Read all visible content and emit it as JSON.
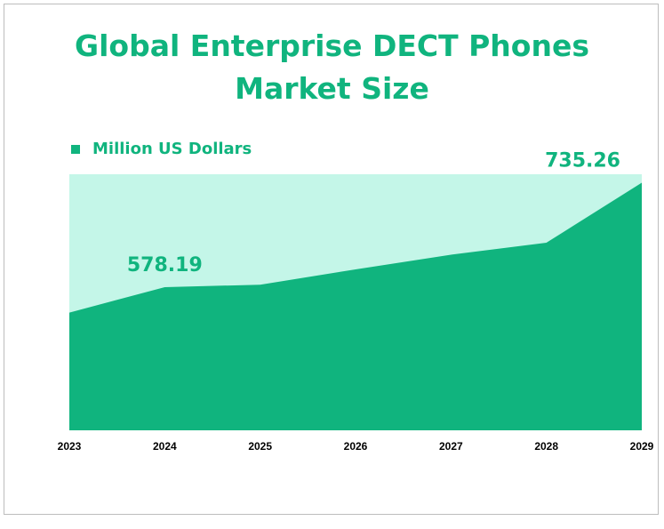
{
  "colors": {
    "accent": "#10b47e",
    "area_fill": "#10b47e",
    "plot_background": "#c4f6e8"
  },
  "chart_data": {
    "type": "area",
    "title": "Global Enterprise DECT Phones Market Size",
    "x": [
      "2023",
      "2024",
      "2025",
      "2026",
      "2027",
      "2028",
      "2029"
    ],
    "series": [
      {
        "name": "Million US Dollars",
        "values": [
          540,
          578.19,
          582,
          605,
          627,
          645,
          735.26
        ]
      }
    ],
    "data_labels": [
      {
        "x": "2024",
        "text": "578.19"
      },
      {
        "x": "2029",
        "text": "735.26"
      }
    ],
    "ylim": [
      363,
      748
    ],
    "grid": false,
    "legend_position": "top-left"
  }
}
